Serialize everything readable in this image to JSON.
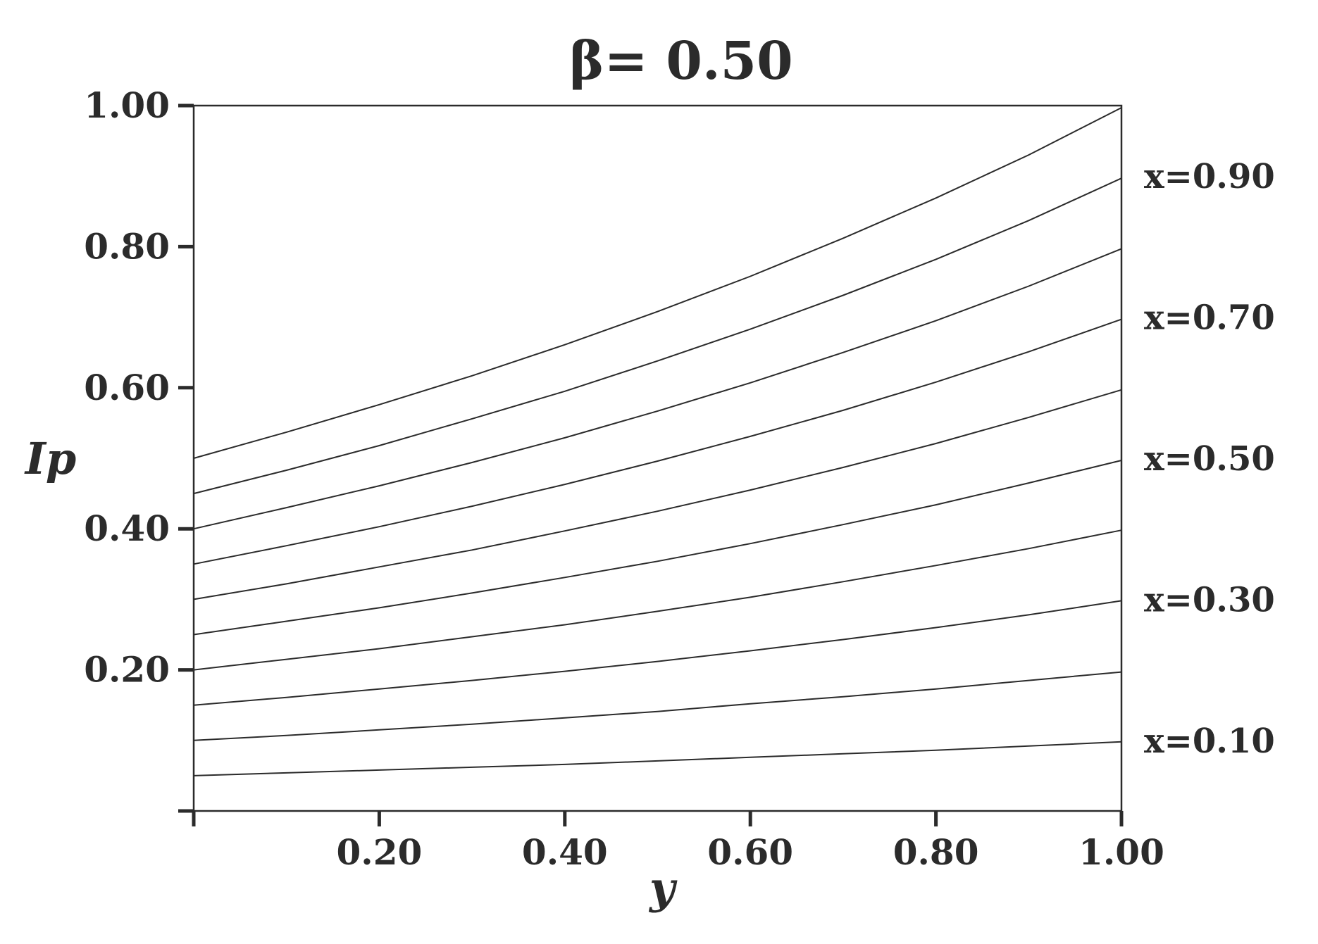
{
  "chart_data": {
    "type": "line",
    "title": "β= 0.50",
    "xlabel": "y",
    "ylabel": "Ip",
    "xlim": [
      0,
      1
    ],
    "ylim": [
      0,
      1
    ],
    "x_ticks": [
      "0.20",
      "0.40",
      "0.60",
      "0.80",
      "1.00"
    ],
    "y_ticks": [
      "0.20",
      "0.40",
      "0.60",
      "0.80",
      "1.00"
    ],
    "grid": false,
    "x": [
      0,
      0.1,
      0.2,
      0.3,
      0.4,
      0.5,
      0.6,
      0.7,
      0.8,
      0.9,
      1.0
    ],
    "series": [
      {
        "values": [
          0.05,
          0.054,
          0.058,
          0.062,
          0.066,
          0.071,
          0.076,
          0.081,
          0.086,
          0.092,
          0.098
        ]
      },
      {
        "values": [
          0.1,
          0.107,
          0.115,
          0.123,
          0.132,
          0.141,
          0.152,
          0.162,
          0.173,
          0.185,
          0.197
        ]
      },
      {
        "values": [
          0.15,
          0.161,
          0.173,
          0.185,
          0.198,
          0.212,
          0.227,
          0.243,
          0.26,
          0.278,
          0.298
        ]
      },
      {
        "values": [
          0.2,
          0.215,
          0.23,
          0.247,
          0.264,
          0.283,
          0.303,
          0.325,
          0.348,
          0.372,
          0.398
        ]
      },
      {
        "values": [
          0.25,
          0.269,
          0.288,
          0.309,
          0.331,
          0.354,
          0.379,
          0.406,
          0.434,
          0.465,
          0.497
        ]
      },
      {
        "values": [
          0.3,
          0.322,
          0.346,
          0.37,
          0.397,
          0.425,
          0.455,
          0.487,
          0.521,
          0.558,
          0.597
        ]
      },
      {
        "values": [
          0.35,
          0.376,
          0.403,
          0.432,
          0.463,
          0.496,
          0.531,
          0.568,
          0.608,
          0.651,
          0.697
        ]
      },
      {
        "values": [
          0.4,
          0.43,
          0.461,
          0.494,
          0.529,
          0.567,
          0.607,
          0.65,
          0.695,
          0.744,
          0.797
        ]
      },
      {
        "values": [
          0.45,
          0.483,
          0.518,
          0.556,
          0.595,
          0.638,
          0.683,
          0.731,
          0.782,
          0.837,
          0.897
        ]
      },
      {
        "values": [
          0.5,
          0.537,
          0.576,
          0.617,
          0.661,
          0.708,
          0.758,
          0.812,
          0.869,
          0.93,
          0.997
        ]
      }
    ],
    "line_labels": [
      {
        "text": "x=0.90",
        "y": 0.9
      },
      {
        "text": "x=0.70",
        "y": 0.7
      },
      {
        "text": "x=0.50",
        "y": 0.5
      },
      {
        "text": "x=0.30",
        "y": 0.3
      },
      {
        "text": "x=0.10",
        "y": 0.1
      }
    ],
    "line_color": "#2b2b2b"
  }
}
